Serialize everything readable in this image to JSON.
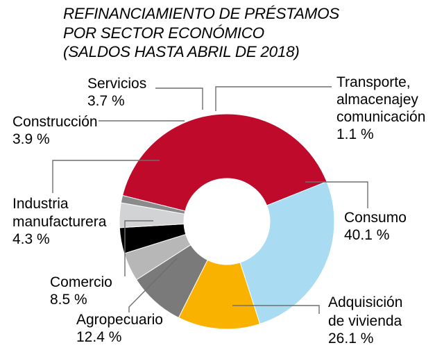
{
  "chart_data": {
    "type": "pie",
    "title": [
      "REFINANCIAMIENTO DE PRÉSTAMOS",
      "POR SECTOR ECONÓMICO",
      "(SALDOS HASTA ABRIL DE 2018)"
    ],
    "legend": "none",
    "slices": [
      {
        "label": [
          "Consumo"
        ],
        "value_text": "40.1 %",
        "value": 40.1,
        "color": "#bf0a2b"
      },
      {
        "label": [
          "Adquisición",
          "de vivienda"
        ],
        "value_text": "26.1 %",
        "value": 26.1,
        "color": "#a9dcf2"
      },
      {
        "label": [
          "Agropecuario"
        ],
        "value_text": "12.4 %",
        "value": 12.4,
        "color": "#f9b200"
      },
      {
        "label": [
          "Comercio"
        ],
        "value_text": "8.5 %",
        "value": 8.5,
        "color": "#7a7a7a"
      },
      {
        "label": [
          "Industria",
          "manufacturera"
        ],
        "value_text": "4.3 %",
        "value": 4.3,
        "color": "#b7b7b7"
      },
      {
        "label": [
          "Construcción"
        ],
        "value_text": "3.9 %",
        "value": 3.9,
        "color": "#000000"
      },
      {
        "label": [
          "Servicios"
        ],
        "value_text": "3.7 %",
        "value": 3.7,
        "color": "#d2d3d5"
      },
      {
        "label": [
          "Transporte,",
          "almacenajey",
          "comunicación"
        ],
        "value_text": "1.1 %",
        "value": 1.1,
        "color": "#8a8a8a"
      }
    ]
  }
}
